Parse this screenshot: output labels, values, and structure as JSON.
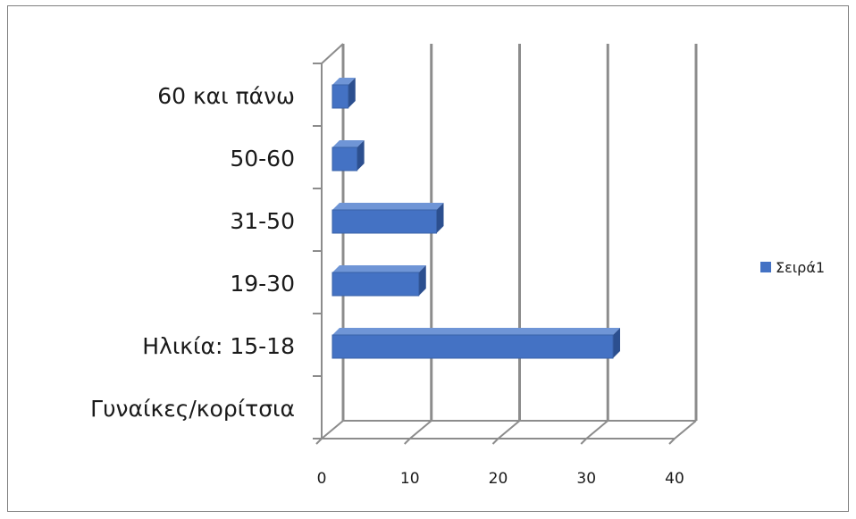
{
  "chart_data": {
    "type": "bar",
    "orientation": "horizontal",
    "style": "3d-clustered-bar",
    "categories": [
      "Γυναίκες/κορίτσια",
      "Ηλικία: 15-18",
      "19-30",
      "31-50",
      "50-60",
      "60 και πάνω"
    ],
    "series": [
      {
        "name": "Σειρά1",
        "values": [
          0,
          32,
          10,
          12,
          3,
          2
        ],
        "color": "#4472c4"
      }
    ],
    "xlim": [
      0,
      40
    ],
    "xticks": [
      "0",
      "10",
      "20",
      "30",
      "40"
    ],
    "grid": true,
    "legend": "right"
  }
}
